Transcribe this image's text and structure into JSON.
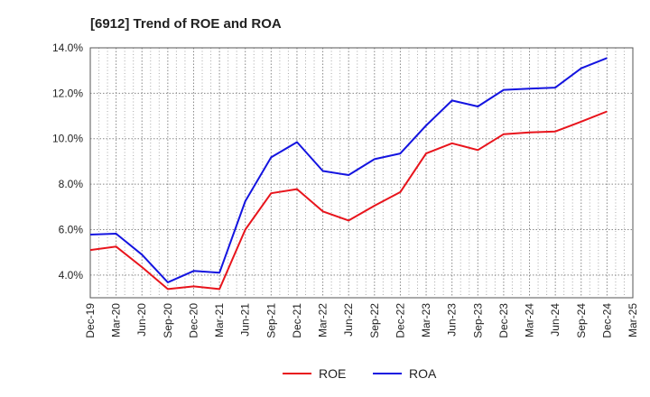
{
  "chart_data": {
    "type": "line",
    "title": "[6912]  Trend of ROE and ROA",
    "xlabel": "",
    "ylabel": "",
    "x": [
      "Dec-19",
      "Mar-20",
      "Jun-20",
      "Sep-20",
      "Dec-20",
      "Mar-21",
      "Jun-21",
      "Sep-21",
      "Dec-21",
      "Mar-22",
      "Jun-22",
      "Sep-22",
      "Dec-22",
      "Mar-23",
      "Jun-23",
      "Sep-23",
      "Dec-23",
      "Mar-24",
      "Jun-24",
      "Sep-24",
      "Dec-24",
      "Mar-25"
    ],
    "ylim": [
      3.0,
      14.0
    ],
    "yticks": [
      4.0,
      6.0,
      8.0,
      10.0,
      12.0,
      14.0
    ],
    "ytick_labels": [
      "4.0%",
      "6.0%",
      "8.0%",
      "10.0%",
      "12.0%",
      "14.0%"
    ],
    "grid": true,
    "legend_position": "bottom-center",
    "series": [
      {
        "name": "ROE",
        "color": "#e8141c",
        "values": [
          5.1,
          5.25,
          4.35,
          3.38,
          3.5,
          3.38,
          6.0,
          7.6,
          7.78,
          6.8,
          6.4,
          7.05,
          7.65,
          9.35,
          9.8,
          9.5,
          10.2,
          10.28,
          10.32,
          10.75,
          11.2,
          null
        ]
      },
      {
        "name": "ROA",
        "color": "#1414e0",
        "values": [
          5.78,
          5.82,
          4.9,
          3.68,
          4.18,
          4.1,
          7.25,
          9.18,
          9.85,
          8.58,
          8.4,
          9.1,
          9.35,
          10.58,
          11.68,
          11.42,
          12.15,
          12.2,
          12.25,
          13.1,
          13.55,
          null
        ]
      }
    ]
  }
}
